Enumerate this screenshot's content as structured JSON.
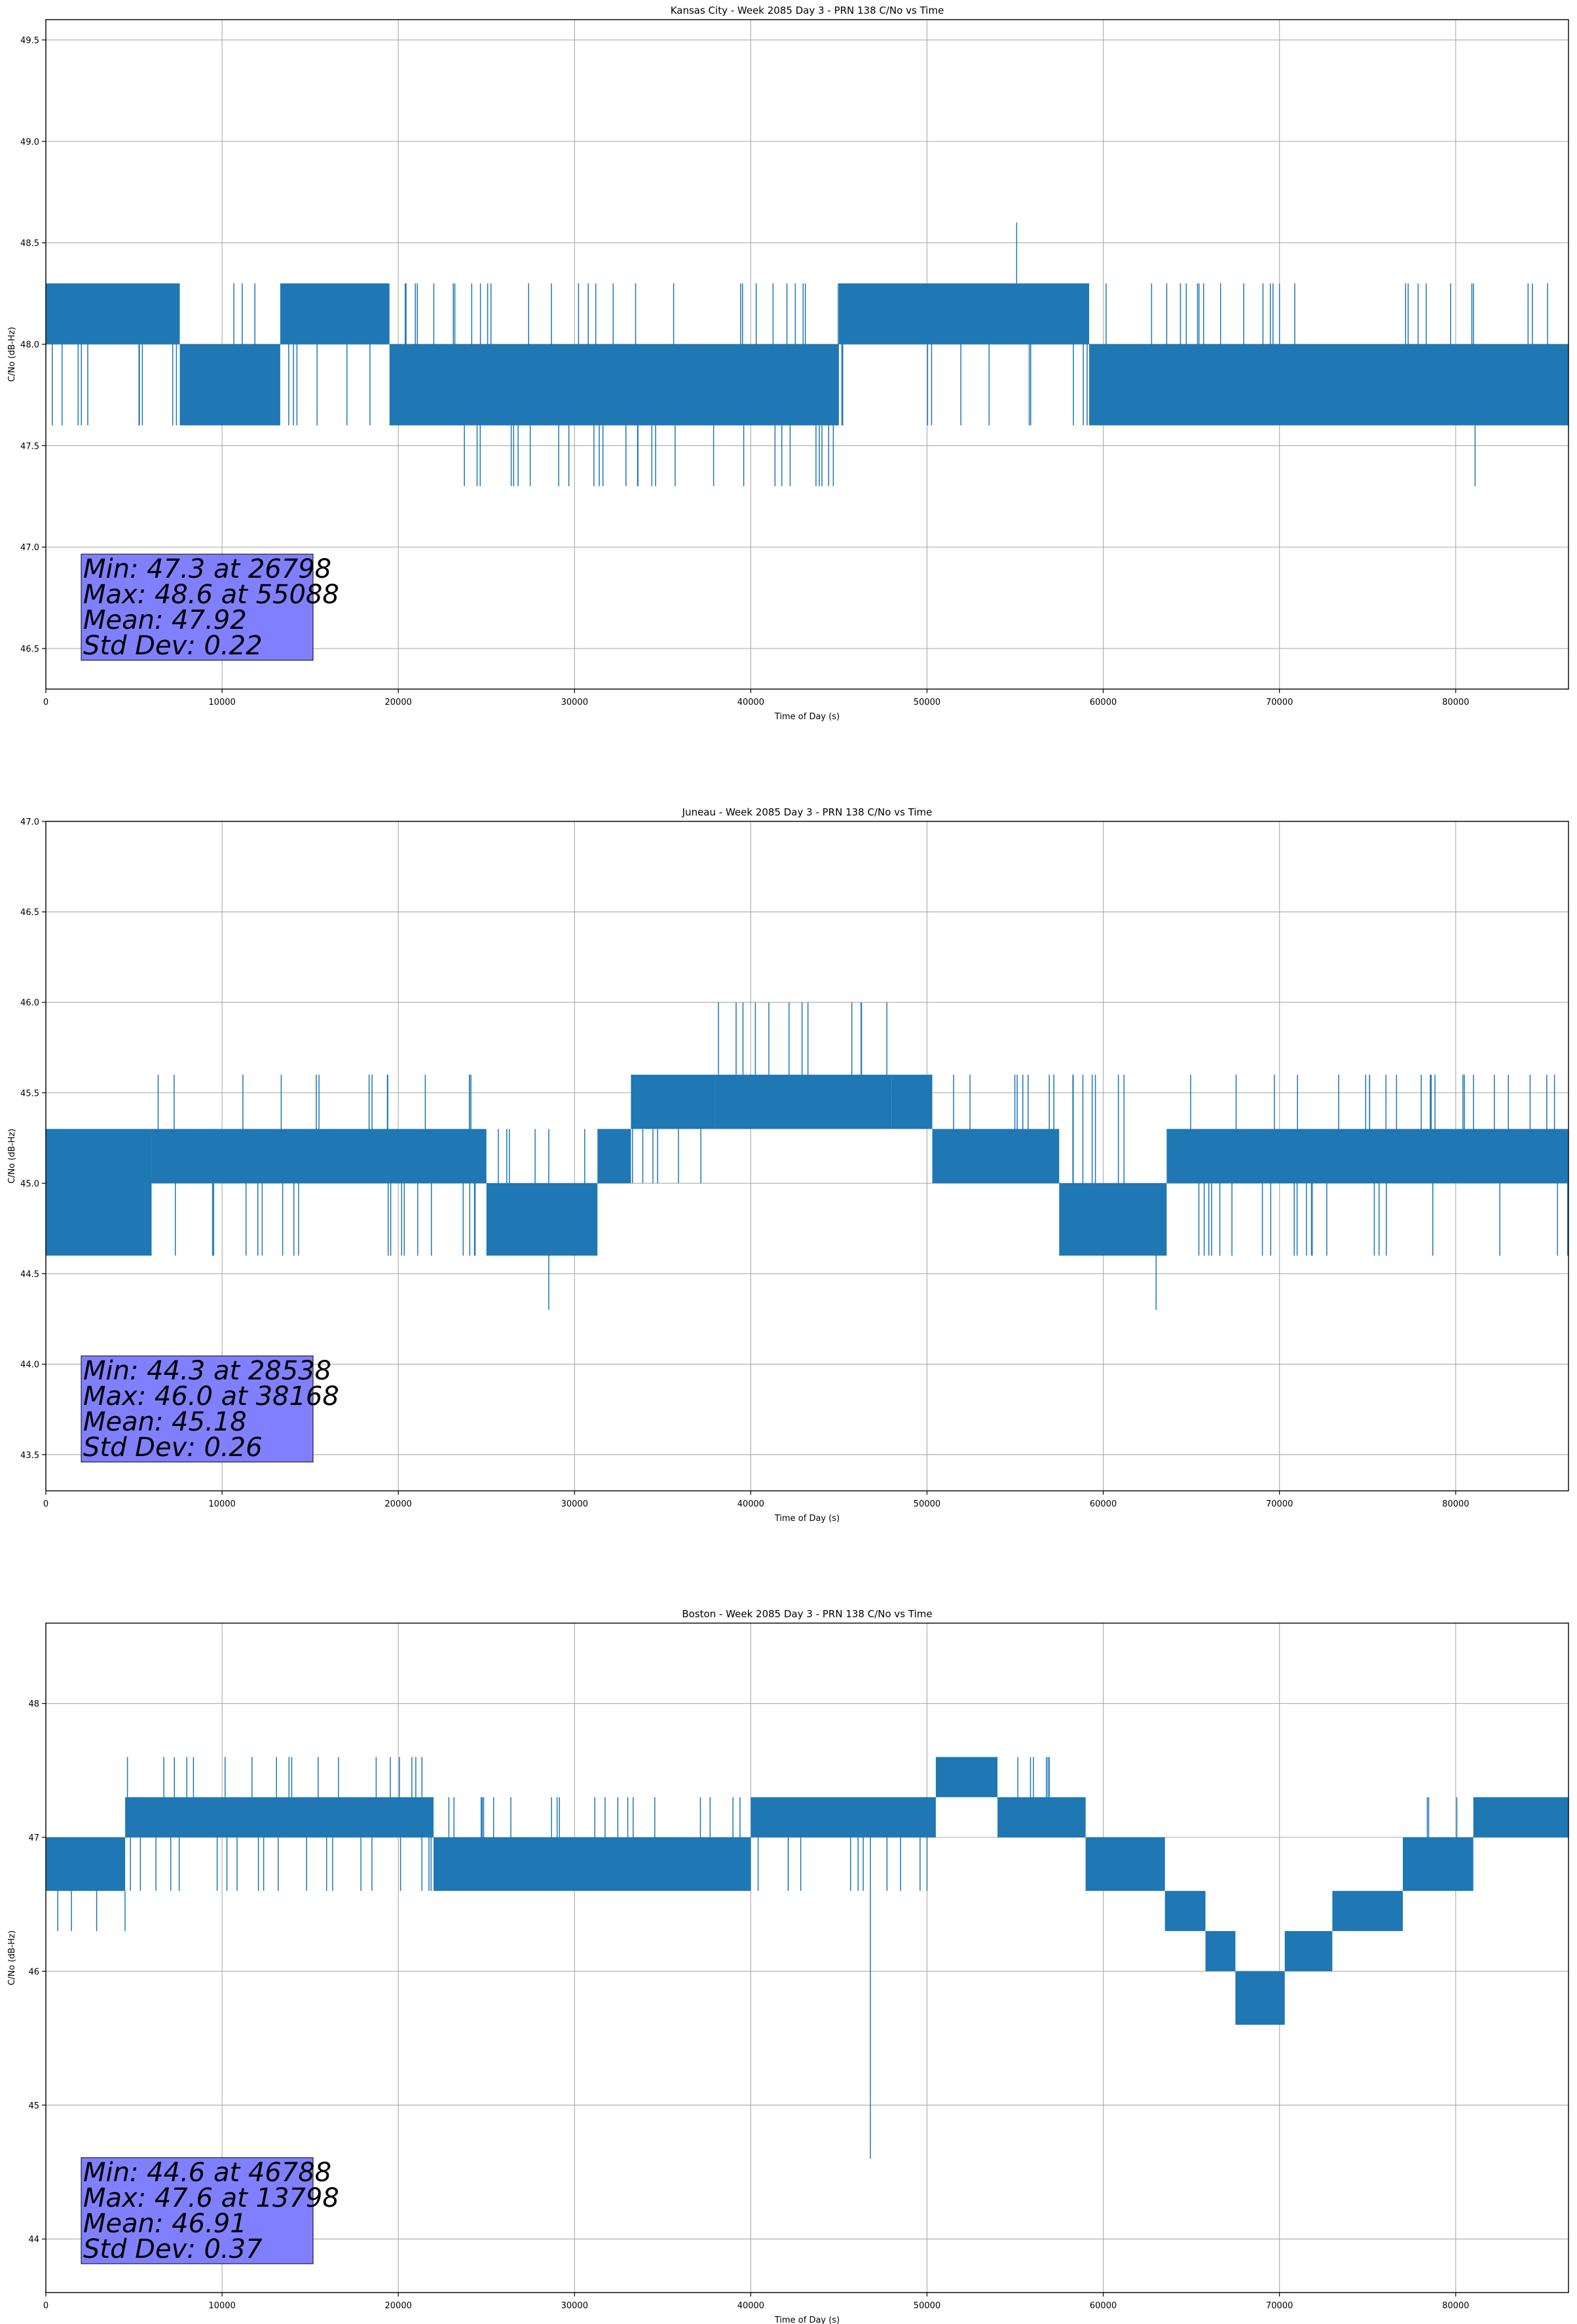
{
  "colors": {
    "series": "#1f77b4",
    "stats_box": "#8080ff",
    "grid": "#b0b0b0"
  },
  "chart_data": [
    {
      "type": "line",
      "title": "Kansas City - Week 2085 Day 3 - PRN 138 C/No vs Time",
      "xlabel": "Time of Day (s)",
      "ylabel": "C/No (dB-Hz)",
      "xlim": [
        0,
        86400
      ],
      "ylim": [
        46.3,
        49.6
      ],
      "xticks": [
        0,
        10000,
        20000,
        30000,
        40000,
        50000,
        60000,
        70000,
        80000
      ],
      "yticks": [
        46.5,
        47.0,
        47.5,
        48.0,
        48.5,
        49.0,
        49.5
      ],
      "grid": true,
      "series": [
        {
          "segments": [
            {
              "x0": 0,
              "x1": 7600,
              "lo": 48.0,
              "hi": 48.3,
              "dips": 47.6
            },
            {
              "x0": 7600,
              "x1": 13300,
              "lo": 47.6,
              "hi": 48.0,
              "spikes": 48.3
            },
            {
              "x0": 13300,
              "x1": 19500,
              "lo": 48.0,
              "hi": 48.3,
              "dips": 47.6
            },
            {
              "x0": 19500,
              "x1": 45000,
              "lo": 47.6,
              "hi": 48.0,
              "dips": 47.3,
              "spikes": 48.3
            },
            {
              "x0": 45000,
              "x1": 59200,
              "lo": 48.0,
              "hi": 48.3,
              "dips": 47.6
            },
            {
              "x0": 59200,
              "x1": 86400,
              "lo": 47.6,
              "hi": 48.0,
              "spikes": 48.3
            }
          ],
          "extremes": [
            {
              "x": 26798,
              "y": 47.3
            },
            {
              "x": 29100,
              "y": 47.3
            },
            {
              "x": 31100,
              "y": 47.3
            },
            {
              "x": 33600,
              "y": 47.3
            },
            {
              "x": 34600,
              "y": 47.3
            },
            {
              "x": 43700,
              "y": 47.3
            },
            {
              "x": 81100,
              "y": 47.3
            },
            {
              "x": 55088,
              "y": 48.6
            }
          ]
        }
      ],
      "stats": [
        "Min: 47.3 at 26798",
        "Max: 48.6 at 55088",
        "Mean: 47.92",
        "Std Dev: 0.22"
      ]
    },
    {
      "type": "line",
      "title": "Juneau - Week 2085 Day 3 - PRN 138 C/No vs Time",
      "xlabel": "Time of Day (s)",
      "ylabel": "C/No (dB-Hz)",
      "xlim": [
        0,
        86400
      ],
      "ylim": [
        43.3,
        47.0
      ],
      "xticks": [
        0,
        10000,
        20000,
        30000,
        40000,
        50000,
        60000,
        70000,
        80000
      ],
      "yticks": [
        43.5,
        44.0,
        44.5,
        45.0,
        45.5,
        46.0,
        46.5,
        47.0
      ],
      "grid": true,
      "series": [
        {
          "segments": [
            {
              "x0": 0,
              "x1": 6000,
              "lo": 44.6,
              "hi": 45.3
            },
            {
              "x0": 6000,
              "x1": 25000,
              "lo": 45.0,
              "hi": 45.3,
              "dips": 44.6,
              "spikes": 45.6
            },
            {
              "x0": 25000,
              "x1": 31300,
              "lo": 44.6,
              "hi": 45.0,
              "spikes": 45.3
            },
            {
              "x0": 31300,
              "x1": 33200,
              "lo": 45.0,
              "hi": 45.3
            },
            {
              "x0": 33200,
              "x1": 38000,
              "lo": 45.3,
              "hi": 45.6,
              "dips": 45.0
            },
            {
              "x0": 38000,
              "x1": 48000,
              "lo": 45.3,
              "hi": 45.6,
              "spikes": 46.0
            },
            {
              "x0": 48000,
              "x1": 50300,
              "lo": 45.3,
              "hi": 45.6
            },
            {
              "x0": 50300,
              "x1": 57500,
              "lo": 45.0,
              "hi": 45.3,
              "spikes": 45.6
            },
            {
              "x0": 57500,
              "x1": 63600,
              "lo": 44.6,
              "hi": 45.0,
              "spikes": 45.6
            },
            {
              "x0": 63600,
              "x1": 86400,
              "lo": 45.0,
              "hi": 45.3,
              "dips": 44.6,
              "spikes": 45.6
            }
          ],
          "extremes": [
            {
              "x": 28538,
              "y": 44.3
            },
            {
              "x": 63000,
              "y": 44.3
            },
            {
              "x": 38168,
              "y": 46.0
            }
          ]
        }
      ],
      "stats": [
        "Min: 44.3 at 28538",
        "Max: 46.0 at 38168",
        "Mean: 45.18",
        "Std Dev: 0.26"
      ]
    },
    {
      "type": "line",
      "title": "Boston - Week 2085 Day 3 - PRN 138 C/No vs Time",
      "xlabel": "Time of Day (s)",
      "ylabel": "C/No (dB-Hz)",
      "xlim": [
        0,
        86400
      ],
      "ylim": [
        43.6,
        48.6
      ],
      "xticks": [
        0,
        10000,
        20000,
        30000,
        40000,
        50000,
        60000,
        70000,
        80000
      ],
      "yticks": [
        44,
        45,
        46,
        47,
        48
      ],
      "grid": true,
      "series": [
        {
          "segments": [
            {
              "x0": 0,
              "x1": 4500,
              "lo": 46.6,
              "hi": 47.0,
              "dips": 46.3
            },
            {
              "x0": 4500,
              "x1": 22000,
              "lo": 47.0,
              "hi": 47.3,
              "dips": 46.6,
              "spikes": 47.6
            },
            {
              "x0": 22000,
              "x1": 40000,
              "lo": 46.6,
              "hi": 47.0,
              "spikes": 47.3
            },
            {
              "x0": 40000,
              "x1": 50500,
              "lo": 47.0,
              "hi": 47.3,
              "dips": 46.6
            },
            {
              "x0": 50500,
              "x1": 54000,
              "lo": 47.3,
              "hi": 47.6
            },
            {
              "x0": 54000,
              "x1": 59000,
              "lo": 47.0,
              "hi": 47.3,
              "spikes": 47.6
            },
            {
              "x0": 59000,
              "x1": 63500,
              "lo": 46.6,
              "hi": 47.0
            },
            {
              "x0": 63500,
              "x1": 65800,
              "lo": 46.3,
              "hi": 46.6
            },
            {
              "x0": 65800,
              "x1": 67500,
              "lo": 46.0,
              "hi": 46.3
            },
            {
              "x0": 67500,
              "x1": 70300,
              "lo": 45.6,
              "hi": 46.0
            },
            {
              "x0": 70300,
              "x1": 73000,
              "lo": 46.0,
              "hi": 46.3
            },
            {
              "x0": 73000,
              "x1": 77000,
              "lo": 46.3,
              "hi": 46.6
            },
            {
              "x0": 77000,
              "x1": 81000,
              "lo": 46.6,
              "hi": 47.0,
              "spikes": 47.3
            },
            {
              "x0": 81000,
              "x1": 86400,
              "lo": 47.0,
              "hi": 47.3
            }
          ],
          "extremes": [
            {
              "x": 46788,
              "y": 44.6
            },
            {
              "x": 13798,
              "y": 47.6
            }
          ]
        }
      ],
      "stats": [
        "Min: 44.6 at 46788",
        "Max: 47.6 at 13798",
        "Mean: 46.91",
        "Std Dev: 0.37"
      ]
    }
  ]
}
